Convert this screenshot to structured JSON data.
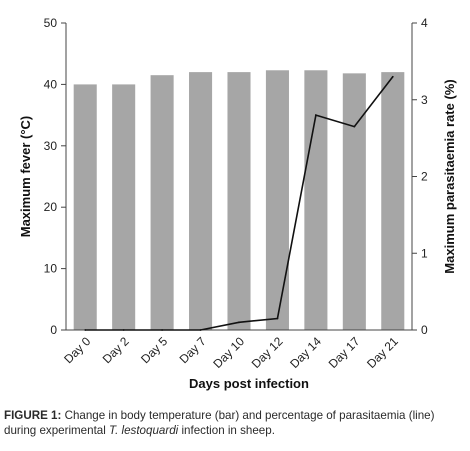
{
  "caption": {
    "label": "FIGURE 1:",
    "text_before": " Change in body temperature (bar) and percentage of parasitaemia (line) during experimental ",
    "organism": "T. lestoquardi",
    "text_after": " infection in sheep."
  },
  "chart_data": {
    "type": "bar",
    "categories": [
      "Day 0",
      "Day 2",
      "Day 5",
      "Day 7",
      "Day 10",
      "Day 12",
      "Day 14",
      "Day 17",
      "Day 21"
    ],
    "xlabel": "Days post infection",
    "ylabel": "Maximum fever (°C)",
    "y2label": "Maximum parasitaemia rate (%)",
    "ylim": [
      0,
      50
    ],
    "y2lim": [
      0,
      4
    ],
    "yticks": [
      0,
      10,
      20,
      30,
      40,
      50
    ],
    "y2ticks": [
      0,
      1,
      2,
      3,
      4
    ],
    "grid": false,
    "legend": "none",
    "series": [
      {
        "type": "bar",
        "axis": "left",
        "values": [
          40.0,
          40.0,
          41.5,
          42.0,
          42.0,
          42.3,
          42.3,
          41.8,
          42.0
        ]
      },
      {
        "type": "line",
        "axis": "right",
        "values": [
          0.0,
          0.0,
          0.0,
          0.0,
          0.1,
          0.15,
          2.8,
          2.65,
          3.3
        ]
      }
    ],
    "colors": {
      "bar": "#a6a6a6",
      "line": "#111111",
      "axis": "#444444"
    }
  }
}
